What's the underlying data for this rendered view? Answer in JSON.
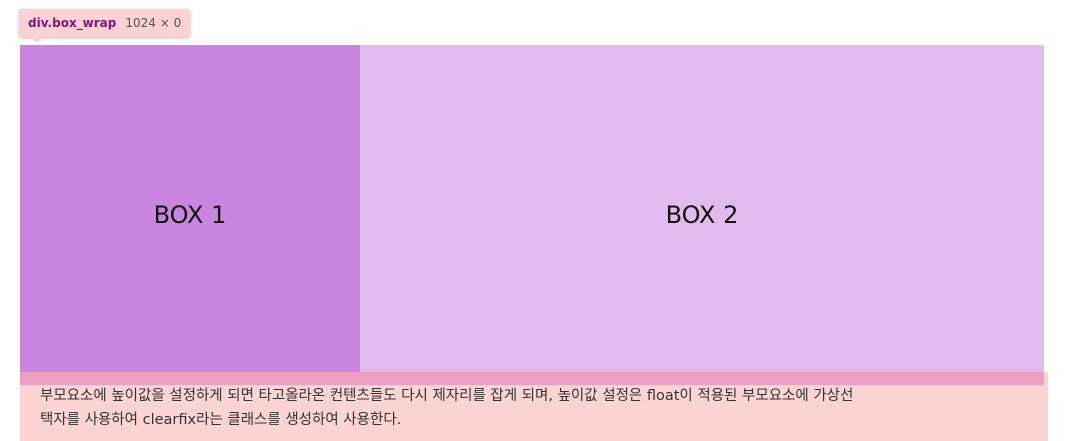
{
  "tooltip": {
    "tag": "div.box_wrap",
    "dimensions": "1024 × 0"
  },
  "boxes": [
    {
      "label": "BOX 1",
      "color": "#c985e0"
    },
    {
      "label": "BOX 2",
      "color": "#e1bbed"
    }
  ],
  "paragraph": {
    "line1": "부모요소에 높이값을 설정하게 되면 타고올라온 컨텐츠들도 다시 제자리를 잡게 되며, 높이값 설정은 float이 적용된 부모요소에 가상선",
    "line2": "택자를 사용하여 clearfix라는 클래스를 생성하여 사용한다.",
    "background": "#fdd4d4"
  }
}
